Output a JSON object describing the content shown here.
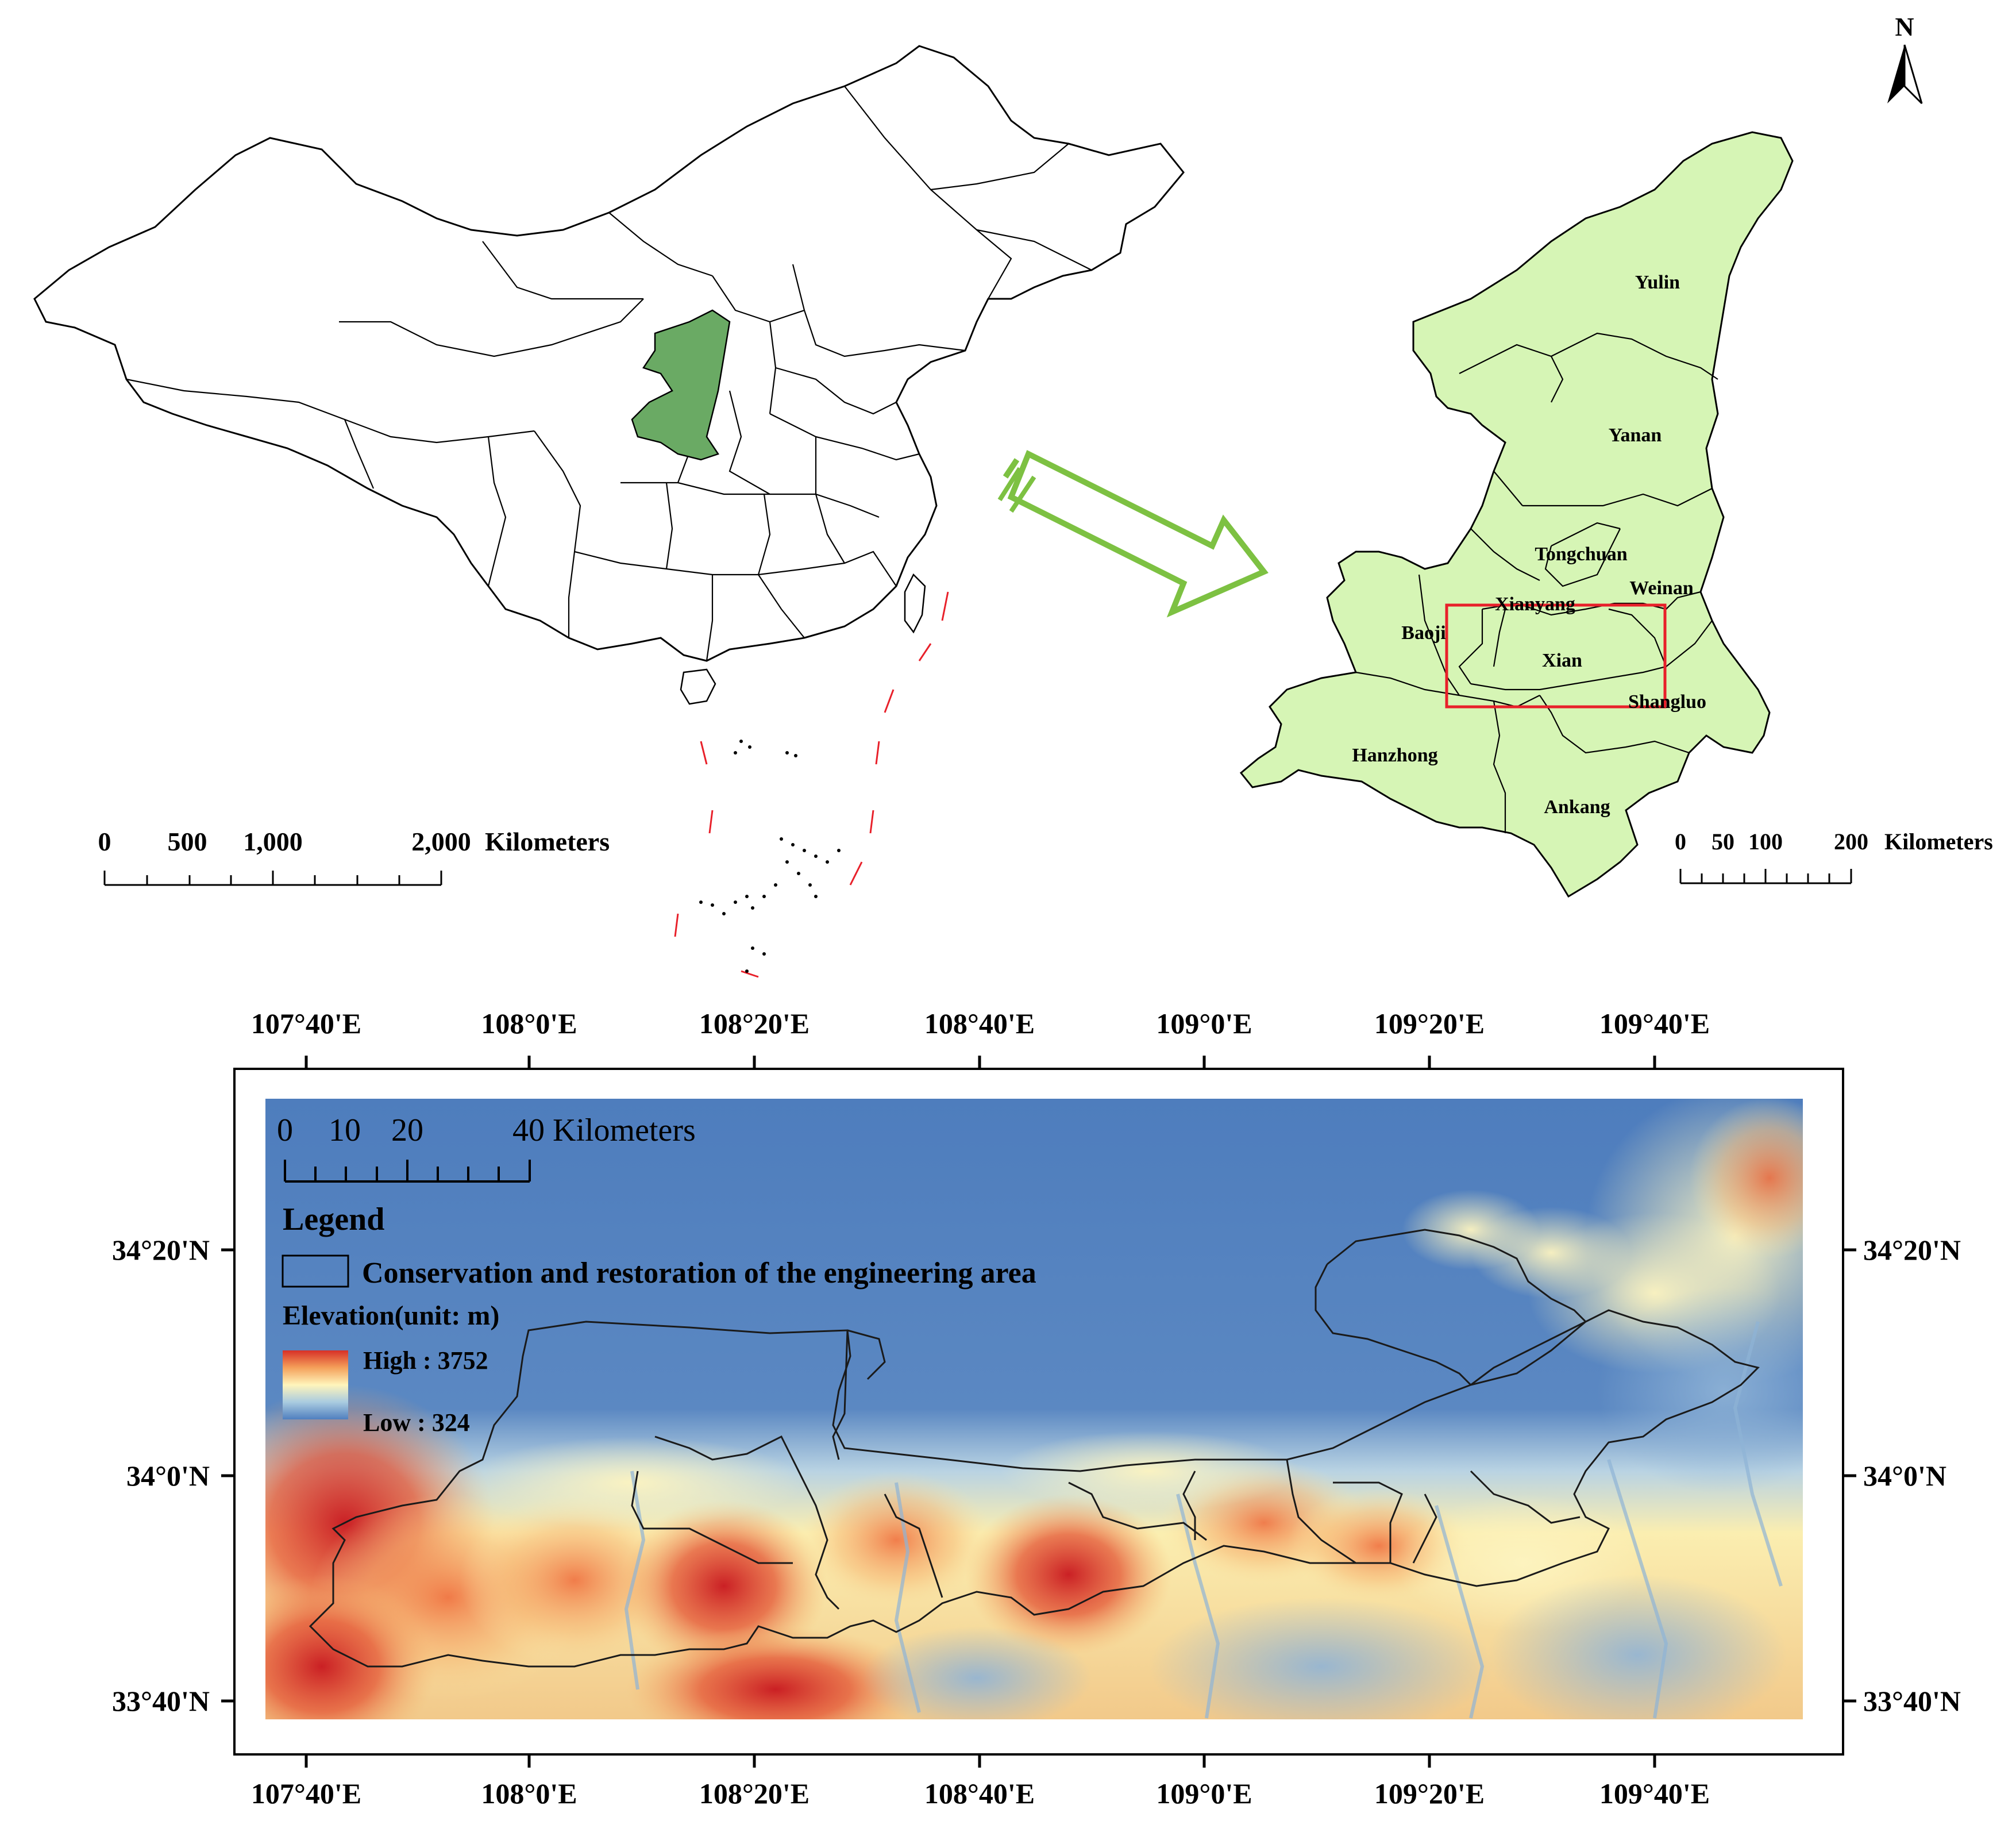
{
  "north_arrow": {
    "label": "N"
  },
  "china_map": {
    "scale_bar": {
      "ticks": [
        "0",
        "500",
        "1,000",
        "2,000"
      ],
      "unit": "Kilometers"
    },
    "highlight_color": "#6aaa64"
  },
  "arrow_color": "#7dc142",
  "shaanxi_map": {
    "fill_color": "#d6f5b5",
    "cities": [
      "Yulin",
      "Yanan",
      "Tongchuan",
      "Weinan",
      "Xianyang",
      "Baoji",
      "Xian",
      "Shangluo",
      "Hanzhong",
      "Ankang"
    ],
    "scale_bar": {
      "ticks": [
        "0",
        "50",
        "100",
        "200"
      ],
      "unit": "Kilometers"
    },
    "study_box_color": "#e8202a"
  },
  "dem_map": {
    "top_longitudes": [
      "107°40'E",
      "108°0'E",
      "108°20'E",
      "108°40'E",
      "109°0'E",
      "109°20'E",
      "109°40'E"
    ],
    "bottom_longitudes": [
      "107°40'E",
      "108°0'E",
      "108°20'E",
      "108°40'E",
      "109°0'E",
      "109°20'E",
      "109°40'E"
    ],
    "left_latitudes": [
      "34°20'N",
      "34°0'N",
      "33°40'N"
    ],
    "right_latitudes": [
      "34°20'N",
      "34°0'N",
      "33°40'N"
    ],
    "scale_bar": {
      "ticks": [
        "0",
        "10",
        "20"
      ],
      "last_label": "40 Kilometers"
    },
    "legend": {
      "title": "Legend",
      "area_label": "Conservation and restoration of the engineering area",
      "elevation_title": "Elevation(unit: m)",
      "high_label": "High : 3752",
      "low_label": "Low : 324"
    },
    "colors": {
      "low": "#4f7fbf",
      "mid": "#fff5bb",
      "high": "#d73027"
    }
  }
}
